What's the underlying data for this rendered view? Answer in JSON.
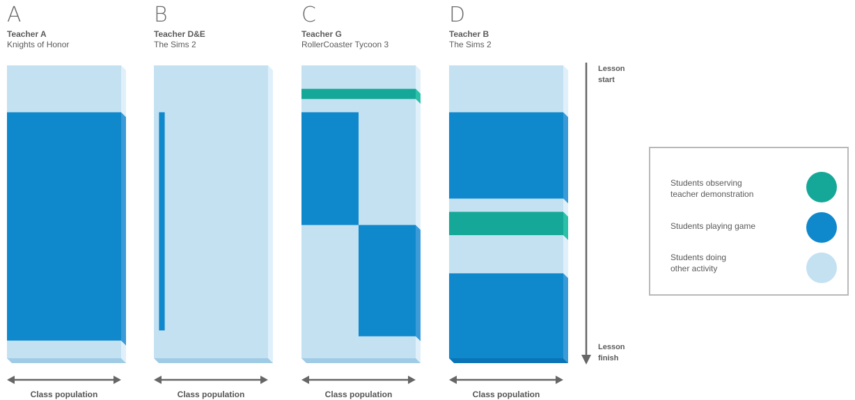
{
  "colors": {
    "teal": "#15a898",
    "blue": "#0f88cc",
    "light": "#c4e1f2",
    "axis": "#666666"
  },
  "panels": [
    {
      "letter": "A",
      "teacher": "Teacher A",
      "game": "Knights of Honor",
      "segments": [
        {
          "from": 0,
          "to": 0.16,
          "activity": "other"
        },
        {
          "from": 0.16,
          "to": 0.94,
          "activity": "playing"
        },
        {
          "from": 0.94,
          "to": 1,
          "activity": "other"
        }
      ]
    },
    {
      "letter": "B",
      "teacher": "Teacher D&E",
      "game": "The Sims 2",
      "segments": [
        {
          "from": 0,
          "to": 1,
          "activity": "other"
        },
        {
          "from": 0.16,
          "to": 0.905,
          "activity": "playing",
          "fraction": 0.05,
          "offset": 0.045
        }
      ]
    },
    {
      "letter": "C",
      "teacher": "Teacher G",
      "game": "RollerCoaster Tycoon 3",
      "segments": [
        {
          "from": 0,
          "to": 0.08,
          "activity": "other"
        },
        {
          "from": 0.08,
          "to": 0.115,
          "activity": "observing"
        },
        {
          "from": 0.115,
          "to": 1,
          "activity": "other"
        },
        {
          "from": 0.16,
          "to": 0.545,
          "activity": "playing",
          "fraction": 0.5,
          "offset": 0
        },
        {
          "from": 0.545,
          "to": 0.925,
          "activity": "playing",
          "fraction": 0.5,
          "offset": 0.5
        }
      ]
    },
    {
      "letter": "D",
      "teacher": "Teacher B",
      "game": "The Sims 2",
      "segments": [
        {
          "from": 0,
          "to": 0.16,
          "activity": "other"
        },
        {
          "from": 0.16,
          "to": 0.455,
          "activity": "playing"
        },
        {
          "from": 0.455,
          "to": 0.5,
          "activity": "other"
        },
        {
          "from": 0.5,
          "to": 0.58,
          "activity": "observing"
        },
        {
          "from": 0.58,
          "to": 0.71,
          "activity": "other"
        },
        {
          "from": 0.71,
          "to": 1,
          "activity": "playing"
        }
      ]
    }
  ],
  "population_label": "Class population",
  "timeline": {
    "start_label_line1": "Lesson",
    "start_label_line2": "start",
    "finish_label_line1": "Lesson",
    "finish_label_line2": "finish"
  },
  "legend": {
    "items": [
      {
        "label_line1": "Students observing",
        "label_line2": "teacher demonstration",
        "activity": "observing",
        "color": "#15a898",
        "swatch_icon": "teal-circle-icon"
      },
      {
        "label_line1": "Students playing game",
        "label_line2": "",
        "activity": "playing",
        "color": "#0f88cc",
        "swatch_icon": "blue-circle-icon"
      },
      {
        "label_line1": "Students doing",
        "label_line2": "other activity",
        "activity": "other",
        "color": "#c4e1f2",
        "swatch_icon": "light-blue-circle-icon"
      }
    ]
  }
}
